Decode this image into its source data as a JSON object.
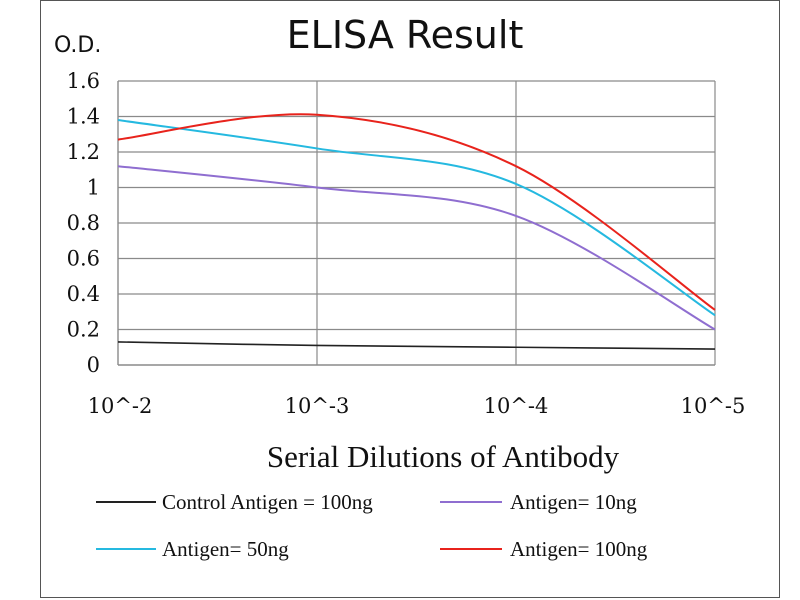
{
  "chart_data": {
    "type": "line",
    "title": "ELISA Result",
    "ylabel": "O.D.",
    "xlabel": "Serial Dilutions  of Antibody",
    "x_categories": [
      "10^-2",
      "10^-3",
      "10^-4",
      "10^-5"
    ],
    "x_scale": "log",
    "ylim": [
      0,
      1.6
    ],
    "y_ticks": [
      "0",
      "0.2",
      "0.4",
      "0.6",
      "0.8",
      "1",
      "1.2",
      "1.4",
      "1.6"
    ],
    "grid": true,
    "legend_position": "bottom",
    "series": [
      {
        "name": "Control Antigen = 100ng",
        "color": "#222222",
        "values": [
          0.13,
          0.11,
          0.1,
          0.09
        ]
      },
      {
        "name": "Antigen= 10ng",
        "color": "#8f6ed0",
        "values": [
          1.12,
          1.0,
          0.84,
          0.2
        ]
      },
      {
        "name": "Antigen= 50ng",
        "color": "#25b9e0",
        "values": [
          1.38,
          1.22,
          1.02,
          0.28
        ]
      },
      {
        "name": "Antigen= 100ng",
        "color": "#e8231c",
        "values": [
          1.27,
          1.41,
          1.12,
          0.31
        ]
      }
    ]
  }
}
